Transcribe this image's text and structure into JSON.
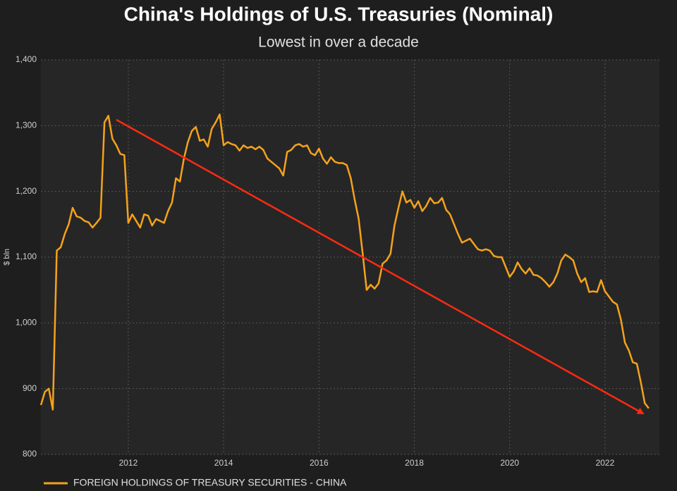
{
  "chart_data": {
    "type": "line",
    "title": "China's Holdings of U.S. Treasuries (Nominal)",
    "subtitle": "Lowest in over a decade",
    "y_label": "$ bln",
    "x": [
      2010.167,
      2010.25,
      2010.333,
      2010.417,
      2010.5,
      2010.583,
      2010.667,
      2010.75,
      2010.833,
      2010.917,
      2011,
      2011.083,
      2011.167,
      2011.25,
      2011.333,
      2011.417,
      2011.5,
      2011.583,
      2011.667,
      2011.75,
      2011.833,
      2011.917,
      2012,
      2012.083,
      2012.167,
      2012.25,
      2012.333,
      2012.417,
      2012.5,
      2012.583,
      2012.667,
      2012.75,
      2012.833,
      2012.917,
      2013,
      2013.083,
      2013.167,
      2013.25,
      2013.333,
      2013.417,
      2013.5,
      2013.583,
      2013.667,
      2013.75,
      2013.833,
      2013.917,
      2014,
      2014.083,
      2014.167,
      2014.25,
      2014.333,
      2014.417,
      2014.5,
      2014.583,
      2014.667,
      2014.75,
      2014.833,
      2014.917,
      2015,
      2015.083,
      2015.167,
      2015.25,
      2015.333,
      2015.417,
      2015.5,
      2015.583,
      2015.667,
      2015.75,
      2015.833,
      2015.917,
      2016,
      2016.083,
      2016.167,
      2016.25,
      2016.333,
      2016.417,
      2016.5,
      2016.583,
      2016.667,
      2016.75,
      2016.833,
      2016.917,
      2017,
      2017.083,
      2017.167,
      2017.25,
      2017.333,
      2017.417,
      2017.5,
      2017.583,
      2017.667,
      2017.75,
      2017.833,
      2017.917,
      2018,
      2018.083,
      2018.167,
      2018.25,
      2018.333,
      2018.417,
      2018.5,
      2018.583,
      2018.667,
      2018.75,
      2018.833,
      2018.917,
      2019,
      2019.083,
      2019.167,
      2019.25,
      2019.333,
      2019.417,
      2019.5,
      2019.583,
      2019.667,
      2019.75,
      2019.833,
      2019.917,
      2020,
      2020.083,
      2020.167,
      2020.25,
      2020.333,
      2020.417,
      2020.5,
      2020.583,
      2020.667,
      2020.75,
      2020.833,
      2020.917,
      2021,
      2021.083,
      2021.167,
      2021.25,
      2021.333,
      2021.417,
      2021.5,
      2021.583,
      2021.667,
      2021.75,
      2021.833,
      2021.917,
      2022,
      2022.083,
      2022.167,
      2022.25,
      2022.333,
      2022.417,
      2022.5,
      2022.583,
      2022.667,
      2022.75,
      2022.833,
      2022.917
    ],
    "series": [
      {
        "name": "FOREIGN HOLDINGS OF TREASURY SECURITIES - CHINA",
        "color": "#f5a21b",
        "values": [
          875,
          895,
          900,
          868,
          1110,
          1115,
          1135,
          1150,
          1175,
          1162,
          1160,
          1155,
          1153,
          1145,
          1152,
          1160,
          1305,
          1315,
          1280,
          1270,
          1257,
          1255,
          1152,
          1165,
          1155,
          1145,
          1165,
          1163,
          1148,
          1158,
          1155,
          1152,
          1170,
          1183,
          1220,
          1215,
          1250,
          1275,
          1292,
          1298,
          1277,
          1279,
          1268,
          1295,
          1305,
          1317,
          1270,
          1275,
          1272,
          1270,
          1262,
          1270,
          1266,
          1268,
          1264,
          1268,
          1263,
          1250,
          1245,
          1240,
          1235,
          1224,
          1260,
          1263,
          1270,
          1272,
          1268,
          1270,
          1258,
          1255,
          1265,
          1250,
          1242,
          1252,
          1245,
          1243,
          1243,
          1240,
          1220,
          1187,
          1158,
          1105,
          1050,
          1058,
          1052,
          1060,
          1090,
          1095,
          1105,
          1148,
          1175,
          1200,
          1183,
          1187,
          1175,
          1185,
          1170,
          1178,
          1190,
          1182,
          1183,
          1190,
          1172,
          1165,
          1150,
          1135,
          1122,
          1125,
          1128,
          1120,
          1112,
          1110,
          1112,
          1110,
          1102,
          1100,
          1100,
          1085,
          1070,
          1078,
          1092,
          1082,
          1075,
          1083,
          1073,
          1072,
          1068,
          1062,
          1055,
          1062,
          1075,
          1095,
          1104,
          1100,
          1095,
          1075,
          1062,
          1068,
          1047,
          1048,
          1047,
          1065,
          1048,
          1040,
          1032,
          1028,
          1005,
          970,
          958,
          940,
          938,
          910,
          878,
          870
        ]
      }
    ],
    "xlim": [
      2010.167,
      2023.14
    ],
    "xticks": [
      2012,
      2014,
      2016,
      2018,
      2020,
      2022
    ],
    "ylim": [
      800,
      1400
    ],
    "yticks": [
      800,
      900,
      {
        "value": 1000,
        "label": "1,000"
      },
      {
        "value": 1100,
        "label": "1,100"
      },
      {
        "value": 1200,
        "label": "1,200"
      },
      {
        "value": 1300,
        "label": "1,300"
      },
      {
        "value": 1400,
        "label": "1,400"
      }
    ],
    "grid": true
  }
}
